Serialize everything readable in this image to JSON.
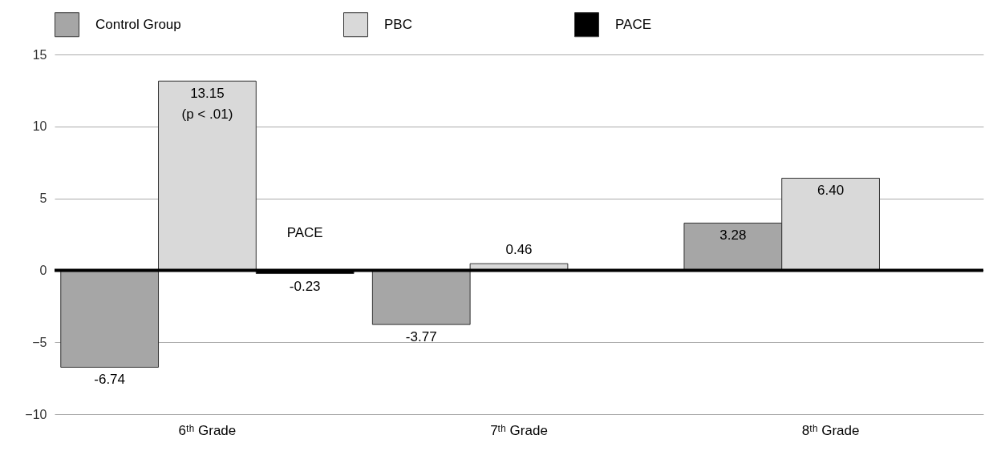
{
  "chart_data": {
    "type": "bar",
    "categories": [
      "6ᵗʰ Grade",
      "7ᵗʰ Grade",
      "8ᵗʰ Grade"
    ],
    "series": [
      {
        "name": "Control Group",
        "color": "#a6a6a6",
        "values": [
          -6.74,
          -3.77,
          3.28
        ],
        "value_labels": [
          "-6.74",
          "-3.77",
          "3.28"
        ]
      },
      {
        "name": "PBC",
        "color": "#d9d9d9",
        "values": [
          13.15,
          0.46,
          6.4
        ],
        "value_labels": [
          "13.15",
          "0.46",
          "6.40"
        ]
      },
      {
        "name": "PACE",
        "color": "#000000",
        "values": [
          -0.23,
          null,
          null
        ],
        "value_labels": [
          "-0.23",
          null,
          null
        ]
      }
    ],
    "ylim": [
      -10,
      15
    ],
    "yticks": [
      -10,
      -5,
      0,
      5,
      10,
      15
    ],
    "grid": "y",
    "legend": "top",
    "annotations": [
      {
        "text": "(p < .01)",
        "x": "6ᵗʰ Grade",
        "y": 13.15
      },
      "PACE"
    ]
  }
}
